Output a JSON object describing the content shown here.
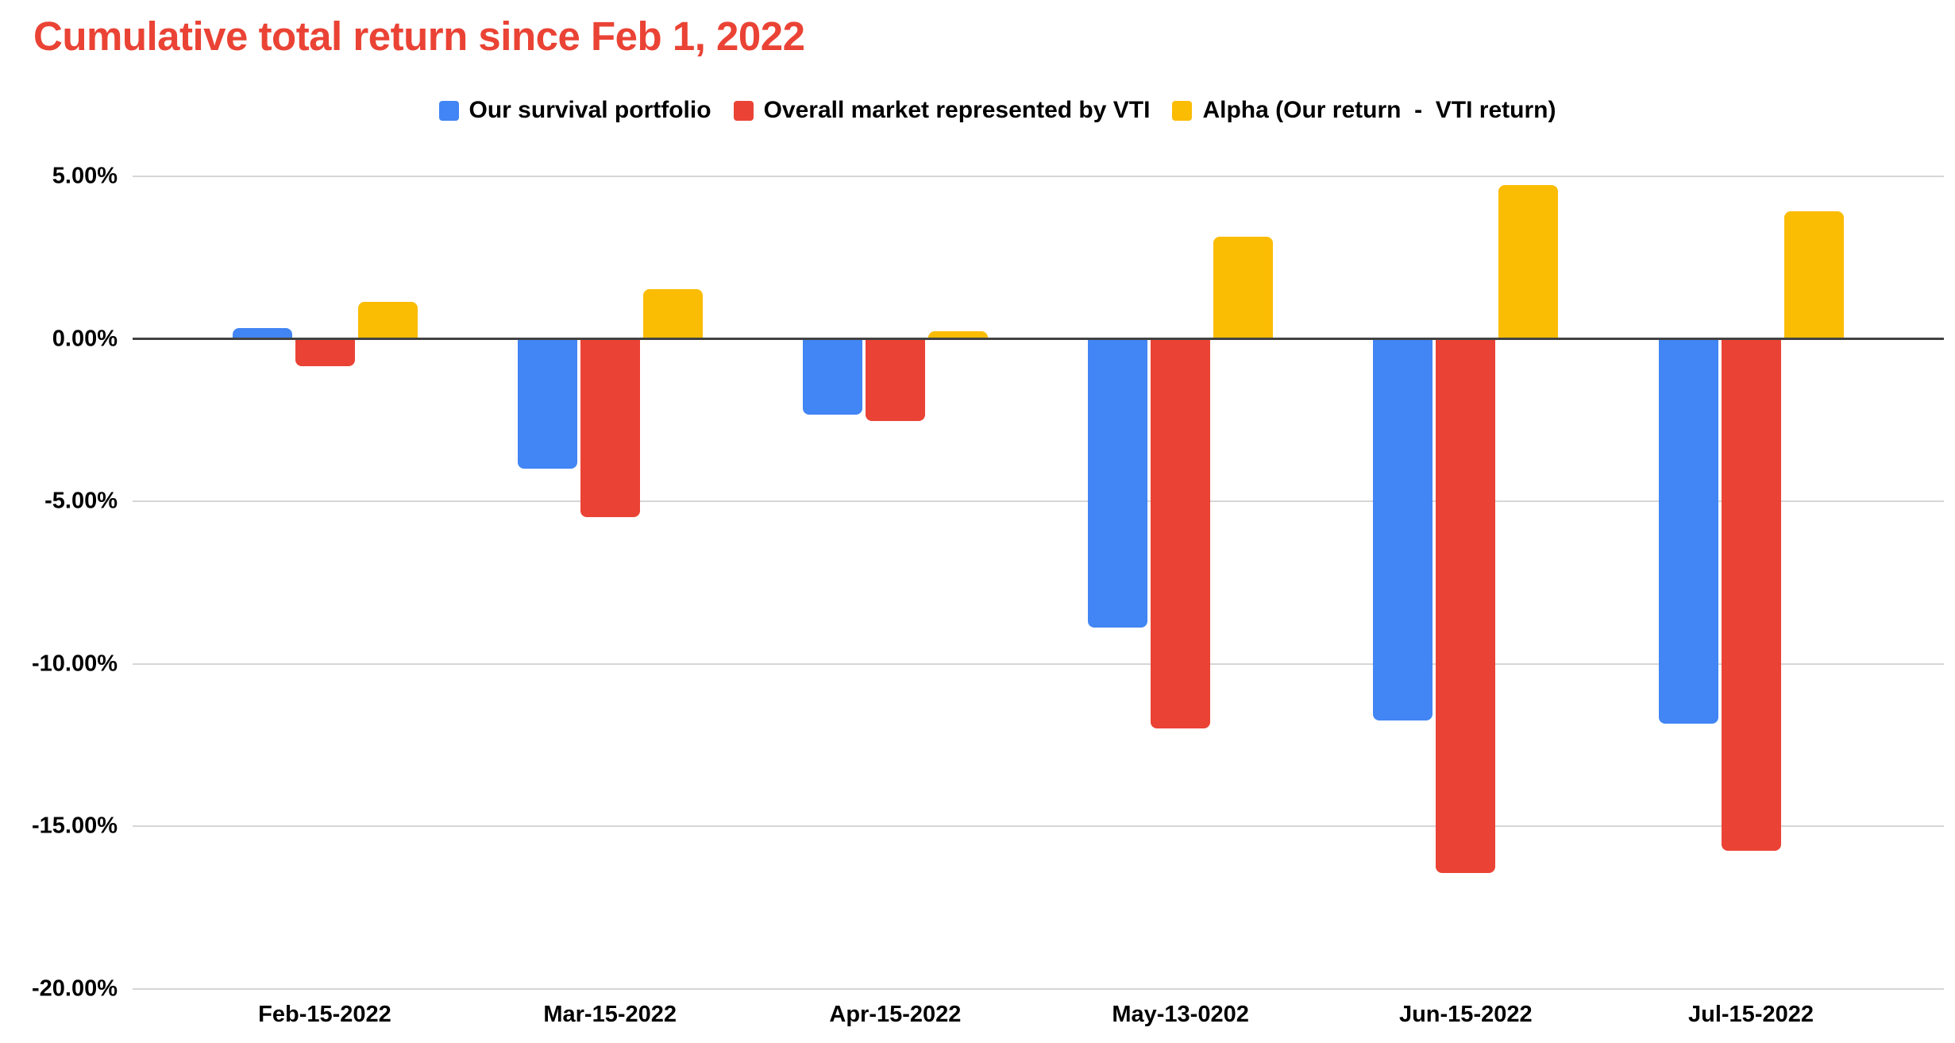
{
  "title": "Cumulative total return since Feb 1, 2022",
  "legend": {
    "items": [
      {
        "label": "Our survival portfolio",
        "color": "#4285F4"
      },
      {
        "label": "Overall market represented by VTI",
        "color": "#EA4335"
      },
      {
        "label": "Alpha (Our return  -  VTI return)",
        "color": "#FBBC04"
      }
    ]
  },
  "axes": {
    "y_tick_labels": [
      "5.00%",
      "0.00%",
      "-5.00%",
      "-10.00%",
      "-15.00%",
      "-20.00%"
    ],
    "y_tick_values": [
      5,
      0,
      -5,
      -10,
      -15,
      -20
    ],
    "x_tick_labels": [
      "Feb-15-2022",
      "Mar-15-2022",
      "Apr-15-2022",
      "May-13-0202",
      "Jun-15-2022",
      "Jul-15-2022"
    ]
  },
  "colors": {
    "title": "#EA4335",
    "series_blue": "#4285F4",
    "series_red": "#EA4335",
    "series_yellow": "#FBBC04",
    "baseline": "#424242",
    "gridline": "#D6D6D6",
    "label_text": "#000000",
    "background": "#FFFFFF"
  },
  "chart_data": {
    "type": "bar",
    "title": "Cumulative total return since Feb 1, 2022",
    "categories": [
      "Feb-15-2022",
      "Mar-15-2022",
      "Apr-15-2022",
      "May-13-0202",
      "Jun-15-2022",
      "Jul-15-2022"
    ],
    "series": [
      {
        "name": "Our survival portfolio",
        "color": "#4285F4",
        "values": [
          0.3,
          -3.95,
          -2.3,
          -8.85,
          -11.7,
          -11.8
        ]
      },
      {
        "name": "Overall market represented by VTI",
        "color": "#EA4335",
        "values": [
          -0.8,
          -5.45,
          -2.5,
          -11.95,
          -16.4,
          -15.7
        ]
      },
      {
        "name": "Alpha (Our return  -  VTI return)",
        "color": "#FBBC04",
        "values": [
          1.1,
          1.5,
          0.2,
          3.1,
          4.7,
          3.9
        ]
      }
    ],
    "units": "percent",
    "xlabel": "",
    "ylabel": "",
    "ylim": [
      -20,
      5
    ],
    "ytick_step": 5,
    "grid": true,
    "baseline": 0,
    "legend_position": "top"
  }
}
